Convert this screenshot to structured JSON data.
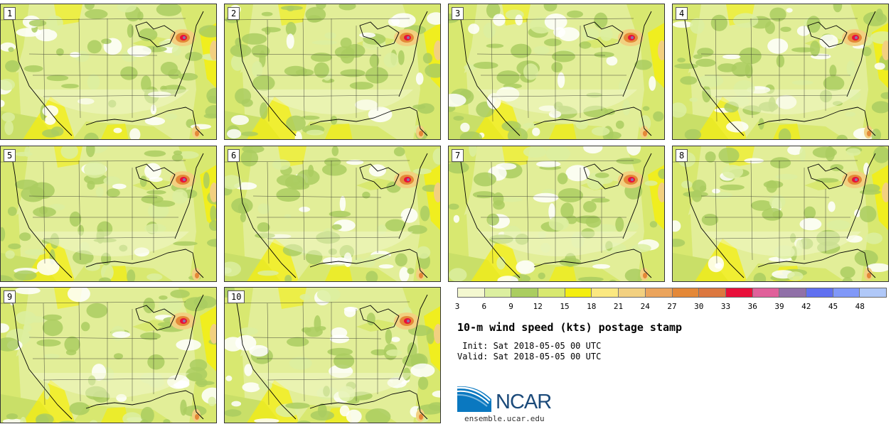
{
  "panels": [
    {
      "label": "1"
    },
    {
      "label": "2"
    },
    {
      "label": "3"
    },
    {
      "label": "4"
    },
    {
      "label": "5"
    },
    {
      "label": "6"
    },
    {
      "label": "7"
    },
    {
      "label": "8"
    },
    {
      "label": "9"
    },
    {
      "label": "10"
    }
  ],
  "colorbar": {
    "colors": [
      "#f4f8d0",
      "#dcefa0",
      "#aacd60",
      "#d8e870",
      "#f4ee10",
      "#fbe880",
      "#f2d080",
      "#eba45c",
      "#e48838",
      "#dc7840",
      "#e8103a",
      "#e0609a",
      "#9070a8",
      "#6070f0",
      "#8098f8",
      "#b0c8f8"
    ],
    "ticks": [
      "3",
      "6",
      "9",
      "12",
      "15",
      "18",
      "21",
      "24",
      "27",
      "30",
      "33",
      "36",
      "39",
      "42",
      "45",
      "48"
    ]
  },
  "title": "10-m wind speed (kts) postage stamp",
  "init_label": " Init: Sat 2018-05-05 00 UTC",
  "valid_label": "Valid: Sat 2018-05-05 00 UTC",
  "logo": {
    "text": "NCAR",
    "url": "ensemble.ucar.edu"
  }
}
